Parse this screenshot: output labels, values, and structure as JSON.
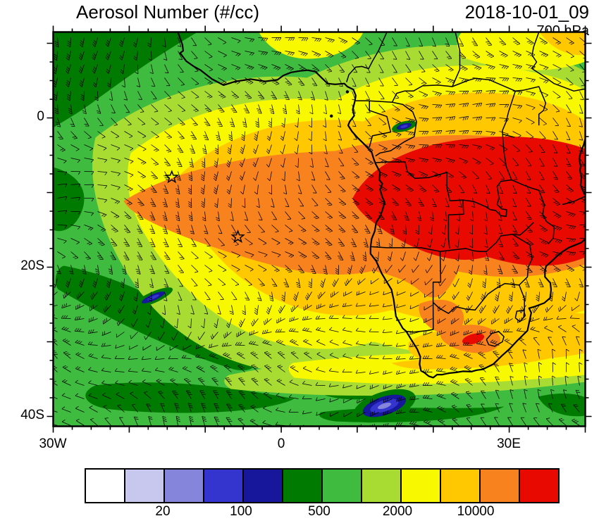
{
  "header": {
    "title": "Aerosol Number (#/cc)",
    "datetime": "2018-10-01_09",
    "level": "700 hPa"
  },
  "axes": {
    "y_ticks": [
      {
        "label": "0",
        "lat": 0
      },
      {
        "label": "20S",
        "lat": -20
      },
      {
        "label": "40S",
        "lat": -40
      }
    ],
    "x_ticks": [
      {
        "label": "30W",
        "lon": -30
      },
      {
        "label": "0",
        "lon": 0
      },
      {
        "label": "30E",
        "lon": 30
      }
    ]
  },
  "chart_data": {
    "type": "heatmap",
    "title": "Aerosol Number (#/cc)",
    "datetime": "2018-10-01_09",
    "pressure_level": "700 hPa",
    "units": "#/cc",
    "lon_range": [
      -30,
      40
    ],
    "lat_range": [
      -41.3,
      11.5
    ],
    "x_tick_labels": [
      "30W",
      "0",
      "30E"
    ],
    "y_tick_labels": [
      "0",
      "20S",
      "40S"
    ],
    "colorbar": {
      "levels": [
        10,
        20,
        50,
        100,
        200,
        500,
        1000,
        2000,
        5000,
        10000,
        20000
      ],
      "labels": [
        "20",
        "100",
        "500",
        "2000",
        "10000"
      ],
      "labeled_boundary_indices": [
        2,
        4,
        6,
        8,
        10
      ],
      "colors": [
        "#FFFFFF",
        "#C8C8EE",
        "#8585DC",
        "#3434CE",
        "#17179B",
        "#007A00",
        "#3FBB3F",
        "#A9DC32",
        "#F8F800",
        "#FFC800",
        "#F8821E",
        "#E80A00"
      ]
    },
    "markers": [
      {
        "name": "star-marker-1",
        "lon": -14.4,
        "lat": -7.95
      },
      {
        "name": "star-marker-2",
        "lon": -5.7,
        "lat": -15.95
      }
    ],
    "overlays": [
      "wind-barbs",
      "coastlines",
      "country-borders"
    ],
    "field_description": "Aerosol number concentration at 700 hPa; maximum >20000 #/cc over Angola/DR Congo extending west over the South Atlantic; ocean background ~500-1000 #/cc; clean pockets <200 #/cc in the far south and southeast Atlantic"
  }
}
